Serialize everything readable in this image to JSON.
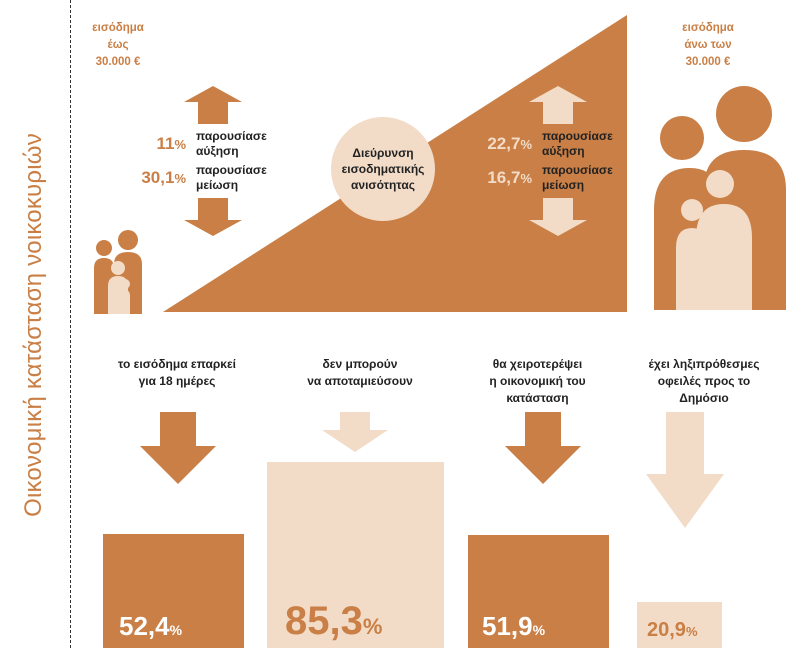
{
  "side_title": "Οικονομική κατάσταση νοικοκυριών",
  "colors": {
    "accent": "#c97f45",
    "light": "#f2dcc8",
    "text": "#222222"
  },
  "low_income": {
    "line1": "εισόδημα",
    "line2": "έως",
    "line3": "30.000 €"
  },
  "high_income": {
    "line1": "εισόδημα",
    "line2": "άνω των",
    "line3": "30.000 €"
  },
  "left_stats": [
    {
      "value": "11",
      "unit": "%",
      "label1": "παρουσίασε",
      "label2": "αύξηση"
    },
    {
      "value": "30,1",
      "unit": "%",
      "label1": "παρουσίασε",
      "label2": "μείωση"
    }
  ],
  "right_stats": [
    {
      "value": "22,7",
      "unit": "%",
      "label1": "παρουσίασε",
      "label2": "αύξηση"
    },
    {
      "value": "16,7",
      "unit": "%",
      "label1": "παρουσίασε",
      "label2": "μείωση"
    }
  ],
  "center_circle": {
    "line1": "Διεύρυνση",
    "line2": "εισοδηματικής",
    "line3": "ανισότητας"
  },
  "chart_data": {
    "type": "bar",
    "categories": [
      "το εισόδημα επαρκεί για 18 ημέρες",
      "δεν μπορούν να αποταμιεύσουν",
      "θα χειροτερέψει η οικονομική του κατάσταση",
      "έχει ληξιπρόθεσμες οφειλές προς το Δημόσιο"
    ],
    "values": [
      52.4,
      85.3,
      51.9,
      20.9
    ],
    "unit": "%"
  },
  "bars": [
    {
      "caption1": "το εισόδημα επαρκεί",
      "caption2": "για 18 ημέρες",
      "caption3": "",
      "value_text": "52,4",
      "unit": "%"
    },
    {
      "caption1": "δεν μπορούν",
      "caption2": "να αποταμιεύσουν",
      "caption3": "",
      "value_text": "85,3",
      "unit": "%"
    },
    {
      "caption1": "θα χειροτερέψει",
      "caption2": "η οικονομική του",
      "caption3": "κατάσταση",
      "value_text": "51,9",
      "unit": "%"
    },
    {
      "caption1": "έχει ληξιπρόθεσμες",
      "caption2": "οφειλές προς το",
      "caption3": "Δημόσιο",
      "value_text": "20,9",
      "unit": "%"
    }
  ]
}
